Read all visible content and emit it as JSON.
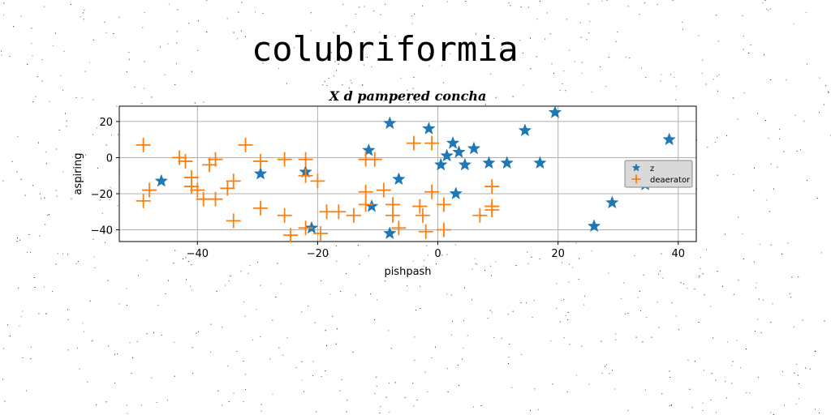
{
  "figure": {
    "suptitle": "colubriformia"
  },
  "chart_data": {
    "type": "scatter",
    "title": "X d pampered concha",
    "xlabel": "pishpash",
    "ylabel": "aspiring",
    "xlim": [
      -53,
      43
    ],
    "ylim": [
      -46.5,
      28.5
    ],
    "xticks": [
      -40,
      -20,
      0,
      20,
      40
    ],
    "yticks": [
      20,
      0,
      -20,
      -40
    ],
    "grid": true,
    "legend_position": "right",
    "series": [
      {
        "name": "z",
        "marker": "star",
        "color": "#1f77b4",
        "points": [
          [
            -46,
            -13
          ],
          [
            -29.5,
            -9
          ],
          [
            -22,
            -8
          ],
          [
            -21,
            -39
          ],
          [
            -11.5,
            4
          ],
          [
            -11,
            -27
          ],
          [
            -8,
            19
          ],
          [
            -8,
            -42
          ],
          [
            -6.5,
            -12
          ],
          [
            -1.5,
            16
          ],
          [
            0.5,
            -4
          ],
          [
            1.5,
            1
          ],
          [
            2.5,
            8
          ],
          [
            3,
            -20
          ],
          [
            3.5,
            3
          ],
          [
            4.5,
            -4
          ],
          [
            6,
            5
          ],
          [
            8.5,
            -3
          ],
          [
            11.5,
            -3
          ],
          [
            14.5,
            15
          ],
          [
            17,
            -3
          ],
          [
            19.5,
            25
          ],
          [
            26,
            -38
          ],
          [
            29,
            -25
          ],
          [
            34.5,
            -15
          ],
          [
            38.5,
            10
          ]
        ]
      },
      {
        "name": "deaerator",
        "marker": "plus",
        "color": "#ff7f0e",
        "points": [
          [
            -49,
            7
          ],
          [
            -49,
            -24
          ],
          [
            -48,
            -18
          ],
          [
            -43,
            0
          ],
          [
            -42,
            -2
          ],
          [
            -41,
            -11
          ],
          [
            -41,
            -16
          ],
          [
            -40,
            -18
          ],
          [
            -39,
            -23
          ],
          [
            -38,
            -4
          ],
          [
            -37,
            -1
          ],
          [
            -37,
            -23
          ],
          [
            -35,
            -17
          ],
          [
            -34,
            -13
          ],
          [
            -34,
            -35
          ],
          [
            -32,
            7
          ],
          [
            -29.5,
            -2
          ],
          [
            -29.5,
            -28
          ],
          [
            -25.5,
            -1
          ],
          [
            -25.5,
            -32
          ],
          [
            -24.5,
            -43
          ],
          [
            -22,
            -1
          ],
          [
            -22,
            -10
          ],
          [
            -22,
            -39
          ],
          [
            -20,
            -13
          ],
          [
            -19.5,
            -42
          ],
          [
            -18.5,
            -30
          ],
          [
            -16.5,
            -30
          ],
          [
            -14,
            -32
          ],
          [
            -12,
            -1
          ],
          [
            -12,
            -19
          ],
          [
            -12,
            -26
          ],
          [
            -10.5,
            -1
          ],
          [
            -9,
            -18
          ],
          [
            -7.5,
            -26
          ],
          [
            -7.5,
            -32
          ],
          [
            -6.5,
            -39
          ],
          [
            -4,
            8
          ],
          [
            -3,
            -27
          ],
          [
            -2.5,
            -32
          ],
          [
            -2,
            -41
          ],
          [
            -1,
            8
          ],
          [
            -1,
            -19
          ],
          [
            1,
            -26
          ],
          [
            1,
            -40
          ],
          [
            7,
            -32
          ],
          [
            9,
            -16
          ],
          [
            9,
            -27
          ],
          [
            9,
            -29
          ]
        ]
      }
    ]
  }
}
